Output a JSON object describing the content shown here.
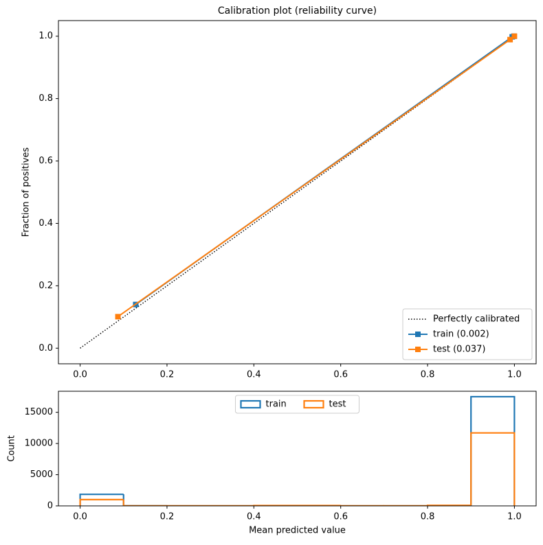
{
  "chart_data": [
    {
      "type": "line",
      "title": "Calibration plot (reliability curve)",
      "y_label": "Fraction of positives",
      "xlim": [
        -0.05,
        1.05
      ],
      "ylim": [
        -0.05,
        1.05
      ],
      "xticks": [
        {
          "value": 0,
          "label": "0.0"
        },
        0.2,
        0.4,
        0.6,
        0.8,
        {
          "value": 1,
          "label": "1.0"
        }
      ],
      "yticks": [
        {
          "value": 0,
          "label": "0.0"
        },
        0.2,
        0.4,
        0.6,
        0.8,
        {
          "value": 1,
          "label": "1.0"
        }
      ],
      "legend": "lower right",
      "series": [
        {
          "name": "Perfectly calibrated",
          "color": "#000000",
          "linestyle": "dotted",
          "x": [
            0,
            1
          ],
          "values": [
            0,
            1
          ]
        },
        {
          "name": "train (0.002)",
          "color": "#1f77b4",
          "marker": "square",
          "x": [
            0.128,
            0.995,
            0.999
          ],
          "values": [
            0.14,
            0.998,
            1.0
          ]
        },
        {
          "name": "test (0.037)",
          "color": "#ff7f0e",
          "marker": "square",
          "x": [
            0.087,
            0.99,
            1.0
          ],
          "values": [
            0.101,
            0.989,
            1.0
          ]
        }
      ]
    },
    {
      "type": "histogram",
      "x_label": "Mean predicted value",
      "y_label": "Count",
      "xlim": [
        -0.05,
        1.05
      ],
      "ylim": [
        0,
        18375
      ],
      "xticks": [
        {
          "value": 0,
          "label": "0.0"
        },
        0.2,
        0.4,
        0.6,
        0.8,
        {
          "value": 1,
          "label": "1.0"
        }
      ],
      "yticks": [
        0,
        5000,
        10000,
        15000
      ],
      "legend": "upper center",
      "bins": [
        0,
        0.1,
        0.2,
        0.3,
        0.4,
        0.5,
        0.6,
        0.7,
        0.8,
        0.9,
        1.0
      ],
      "series": [
        {
          "name": "train",
          "color": "#1f77b4",
          "values": [
            1850,
            10,
            5,
            5,
            10,
            10,
            5,
            5,
            20,
            17500
          ]
        },
        {
          "name": "test",
          "color": "#ff7f0e",
          "values": [
            1000,
            10,
            10,
            10,
            60,
            60,
            10,
            20,
            80,
            11700
          ]
        }
      ]
    }
  ]
}
